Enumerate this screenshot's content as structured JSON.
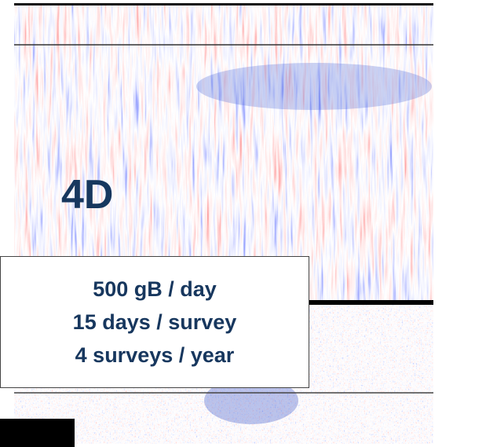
{
  "overlay": {
    "label": "4D",
    "lines": [
      "500 gB / day",
      "15 days / survey",
      "4 surveys / year"
    ]
  }
}
